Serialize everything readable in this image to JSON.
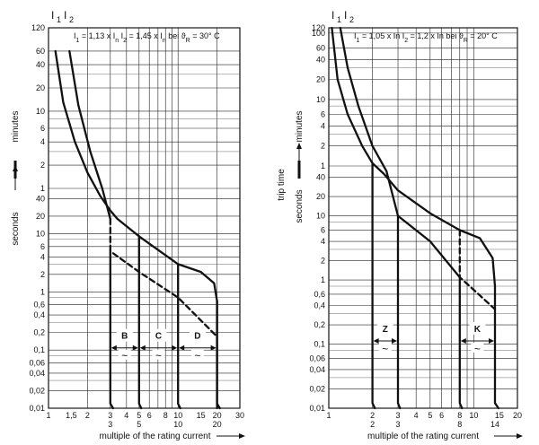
{
  "chart_data": [
    {
      "type": "line",
      "header_labels": [
        "I",
        "1",
        "I",
        "2"
      ],
      "formula": {
        "i1": "I",
        "i1_sub": "1",
        "i1_val": "= 1,13 x I",
        "i1_val_sub": "n",
        "i2": "I",
        "i2_sub": "2",
        "i2_val": "= 1,45 x I",
        "i2_val_sub": "n",
        "temp": "bei ϑ",
        "temp_sub": "R",
        "temp_val": "= 30° C"
      },
      "xlabel": "multiple of the rating current",
      "y_label_minutes": "minutes",
      "y_label_seconds": "seconds",
      "x_scale": "log",
      "y_scale": "log",
      "xlim": [
        1,
        30
      ],
      "x_ticks": [
        {
          "v": 1,
          "t": "1"
        },
        {
          "v": 1.5,
          "t": "1,5"
        },
        {
          "v": 2,
          "t": "2"
        },
        {
          "v": 3,
          "t": "3"
        },
        {
          "v": 4,
          "t": "4"
        },
        {
          "v": 5,
          "t": "5"
        },
        {
          "v": 6,
          "t": "6"
        },
        {
          "v": 8,
          "t": "8"
        },
        {
          "v": 10,
          "t": "10"
        },
        {
          "v": 15,
          "t": "15"
        },
        {
          "v": 20,
          "t": "20"
        },
        {
          "v": 30,
          "t": "30"
        }
      ],
      "x_ticks_second_row": [
        {
          "v": 3,
          "t": "3"
        },
        {
          "v": 5,
          "t": "5"
        },
        {
          "v": 10,
          "t": "10"
        },
        {
          "v": 20,
          "t": "20"
        }
      ],
      "y_ticks_minutes": [
        {
          "v": 120,
          "t": "120"
        },
        {
          "v": 60,
          "t": "60"
        },
        {
          "v": 40,
          "t": "40"
        },
        {
          "v": 20,
          "t": "20"
        },
        {
          "v": 10,
          "t": "10"
        },
        {
          "v": 6,
          "t": "6"
        },
        {
          "v": 4,
          "t": "4"
        },
        {
          "v": 2,
          "t": "2"
        },
        {
          "v": 1,
          "t": "1"
        }
      ],
      "y_ticks_seconds": [
        {
          "v": 40,
          "t": "40"
        },
        {
          "v": 20,
          "t": "20"
        },
        {
          "v": 10,
          "t": "10"
        },
        {
          "v": 6,
          "t": "6"
        },
        {
          "v": 4,
          "t": "4"
        },
        {
          "v": 2,
          "t": "2"
        },
        {
          "v": 1,
          "t": "1"
        },
        {
          "v": 0.6,
          "t": "0,6"
        },
        {
          "v": 0.4,
          "t": "0,4"
        },
        {
          "v": 0.2,
          "t": "0,2"
        },
        {
          "v": 0.1,
          "t": "0,1"
        },
        {
          "v": 0.06,
          "t": "0,06"
        },
        {
          "v": 0.04,
          "t": "0,04"
        },
        {
          "v": 0.02,
          "t": "0,02"
        },
        {
          "v": 0.01,
          "t": "0,01"
        }
      ],
      "series": [
        {
          "name": "I1 upper",
          "style": "solid",
          "unit": "mixed",
          "points": [
            {
              "x": 1.13,
              "min": 60
            },
            {
              "x": 1.3,
              "min": 13
            },
            {
              "x": 1.6,
              "min": 4
            },
            {
              "x": 2,
              "min": 1.6
            },
            {
              "x": 2.5,
              "sec": 45
            },
            {
              "x": 3,
              "sec": 25
            },
            {
              "x": 3.4,
              "sec": 18
            },
            {
              "x": 5,
              "sec": 9
            },
            {
              "x": 10,
              "sec": 3
            },
            {
              "x": 15,
              "sec": 2.2
            },
            {
              "x": 19,
              "sec": 1.4
            },
            {
              "x": 20,
              "sec": 0.7
            },
            {
              "x": 20,
              "sec": 0.01
            }
          ]
        },
        {
          "name": "I2 lower",
          "style": "solid",
          "unit": "mixed",
          "points": [
            {
              "x": 1.45,
              "min": 60
            },
            {
              "x": 1.7,
              "min": 12
            },
            {
              "x": 2.1,
              "min": 3
            },
            {
              "x": 2.6,
              "min": 1
            },
            {
              "x": 3,
              "sec": 18
            }
          ]
        },
        {
          "name": "lower dashed",
          "style": "dashed",
          "unit": "sec",
          "points": [
            {
              "x": 3,
              "sec": 18
            },
            {
              "x": 3,
              "sec": 5
            },
            {
              "x": 5,
              "sec": 2.2
            },
            {
              "x": 10,
              "sec": 0.8
            },
            {
              "x": 20,
              "sec": 0.17
            }
          ]
        },
        {
          "name": "B",
          "style": "solid",
          "unit": "sec",
          "points": [
            {
              "x": 3,
              "sec": 5
            },
            {
              "x": 3,
              "sec": 0.012
            },
            {
              "x": 3.15,
              "sec": 0.01
            }
          ]
        },
        {
          "name": "C",
          "style": "solid",
          "unit": "sec",
          "points": [
            {
              "x": 5,
              "sec": 9
            },
            {
              "x": 5,
              "sec": 0.012
            },
            {
              "x": 5.2,
              "sec": 0.01
            }
          ]
        },
        {
          "name": "D",
          "style": "solid",
          "unit": "sec",
          "points": [
            {
              "x": 10,
              "sec": 3
            },
            {
              "x": 10,
              "sec": 0.012
            },
            {
              "x": 10.4,
              "sec": 0.01
            }
          ]
        },
        {
          "name": "D right",
          "style": "solid",
          "unit": "sec",
          "points": [
            {
              "x": 20,
              "sec": 0.7
            },
            {
              "x": 20,
              "sec": 0.012
            },
            {
              "x": 21,
              "sec": 0.01
            }
          ]
        }
      ],
      "bands": [
        {
          "label": "B",
          "x1": 3,
          "x2": 5
        },
        {
          "label": "C",
          "x1": 5,
          "x2": 10
        },
        {
          "label": "D",
          "x1": 10,
          "x2": 20
        }
      ],
      "band_y_sec": 0.15,
      "tilde": "~"
    },
    {
      "type": "line",
      "header_labels": [
        "I",
        "1",
        "I",
        "2"
      ],
      "formula": {
        "i1": "I",
        "i1_sub": "1",
        "i1_val": "= 1,05 x In",
        "i2": "I",
        "i2_sub": "2",
        "i2_val": "= 1,2 x In",
        "temp": "bei ϑ",
        "temp_sub": "R",
        "temp_val": "= 20° C"
      },
      "xlabel": "multiple of the rating current",
      "ylabel_trip": "trip time",
      "y_label_minutes": "minutes",
      "y_label_seconds": "seconds",
      "x_scale": "log",
      "y_scale": "log",
      "xlim": [
        1,
        20
      ],
      "x_ticks": [
        {
          "v": 1,
          "t": "1"
        },
        {
          "v": 2,
          "t": "2"
        },
        {
          "v": 3,
          "t": "3"
        },
        {
          "v": 4,
          "t": "4"
        },
        {
          "v": 5,
          "t": "5"
        },
        {
          "v": 6,
          "t": "6"
        },
        {
          "v": 8,
          "t": "8"
        },
        {
          "v": 10,
          "t": "10"
        },
        {
          "v": 15,
          "t": "15"
        },
        {
          "v": 20,
          "t": "20"
        }
      ],
      "x_ticks_second_row": [
        {
          "v": 2,
          "t": "2"
        },
        {
          "v": 3,
          "t": "3"
        },
        {
          "v": 8,
          "t": "8"
        },
        {
          "v": 14,
          "t": "14"
        }
      ],
      "y_ticks_minutes": [
        {
          "v": 120,
          "t": "120"
        },
        {
          "v": 100,
          "t": "100"
        },
        {
          "v": 60,
          "t": "60"
        },
        {
          "v": 40,
          "t": "40"
        },
        {
          "v": 20,
          "t": "20"
        },
        {
          "v": 10,
          "t": "10"
        },
        {
          "v": 6,
          "t": "6"
        },
        {
          "v": 4,
          "t": "4"
        },
        {
          "v": 2,
          "t": "2"
        },
        {
          "v": 1,
          "t": "1"
        }
      ],
      "y_ticks_seconds": [
        {
          "v": 40,
          "t": "40"
        },
        {
          "v": 20,
          "t": "20"
        },
        {
          "v": 10,
          "t": "10"
        },
        {
          "v": 6,
          "t": "6"
        },
        {
          "v": 4,
          "t": "4"
        },
        {
          "v": 2,
          "t": "2"
        },
        {
          "v": 1,
          "t": "1"
        },
        {
          "v": 0.6,
          "t": "0,6"
        },
        {
          "v": 0.4,
          "t": "0,4"
        },
        {
          "v": 0.2,
          "t": "0,2"
        },
        {
          "v": 0.1,
          "t": "0,1"
        },
        {
          "v": 0.06,
          "t": "0,06"
        },
        {
          "v": 0.04,
          "t": "0,04"
        },
        {
          "v": 0.02,
          "t": "0,02"
        },
        {
          "v": 0.01,
          "t": "0,01"
        }
      ],
      "series": [
        {
          "name": "I1 upper",
          "style": "solid",
          "unit": "mixed",
          "points": [
            {
              "x": 1.05,
              "min": 120
            },
            {
              "x": 1.15,
              "min": 20
            },
            {
              "x": 1.35,
              "min": 6
            },
            {
              "x": 1.7,
              "min": 2
            },
            {
              "x": 2,
              "min": 1.1
            },
            {
              "x": 2.4,
              "sec": 45
            },
            {
              "x": 3,
              "sec": 25
            },
            {
              "x": 5,
              "sec": 11
            },
            {
              "x": 8,
              "sec": 6
            },
            {
              "x": 11,
              "sec": 4.5
            },
            {
              "x": 13.5,
              "sec": 2.2
            },
            {
              "x": 14,
              "sec": 0.8
            },
            {
              "x": 14,
              "sec": 0.012
            },
            {
              "x": 14.8,
              "sec": 0.01
            }
          ]
        },
        {
          "name": "I2 lower",
          "style": "solid",
          "unit": "mixed",
          "points": [
            {
              "x": 1.2,
              "min": 120
            },
            {
              "x": 1.35,
              "min": 30
            },
            {
              "x": 1.6,
              "min": 8
            },
            {
              "x": 2,
              "min": 2
            },
            {
              "x": 2.5,
              "sec": 50
            },
            {
              "x": 3,
              "sec": 10
            },
            {
              "x": 5,
              "sec": 4
            },
            {
              "x": 8,
              "sec": 1.1
            },
            {
              "x": 8,
              "sec": 0.012
            },
            {
              "x": 8.3,
              "sec": 0.01
            }
          ]
        },
        {
          "name": "lower dashed",
          "style": "dashed",
          "unit": "sec",
          "points": [
            {
              "x": 8,
              "sec": 6
            },
            {
              "x": 8,
              "sec": 1.1
            },
            {
              "x": 10,
              "sec": 0.7
            },
            {
              "x": 14,
              "sec": 0.35
            }
          ]
        },
        {
          "name": "Z left",
          "style": "solid",
          "unit": "mixed",
          "points": [
            {
              "x": 2,
              "min": 1.1
            },
            {
              "x": 2,
              "sec": 0.012
            },
            {
              "x": 2.08,
              "sec": 0.01
            }
          ]
        },
        {
          "name": "Z right",
          "style": "solid",
          "unit": "sec",
          "points": [
            {
              "x": 3,
              "sec": 10
            },
            {
              "x": 3,
              "sec": 0.012
            },
            {
              "x": 3.1,
              "sec": 0.01
            }
          ]
        }
      ],
      "bands": [
        {
          "label": "Z",
          "x1": 2,
          "x2": 3
        },
        {
          "label": "K",
          "x1": 8,
          "x2": 14
        }
      ],
      "band_y_sec": 0.15,
      "tilde": "~"
    }
  ]
}
